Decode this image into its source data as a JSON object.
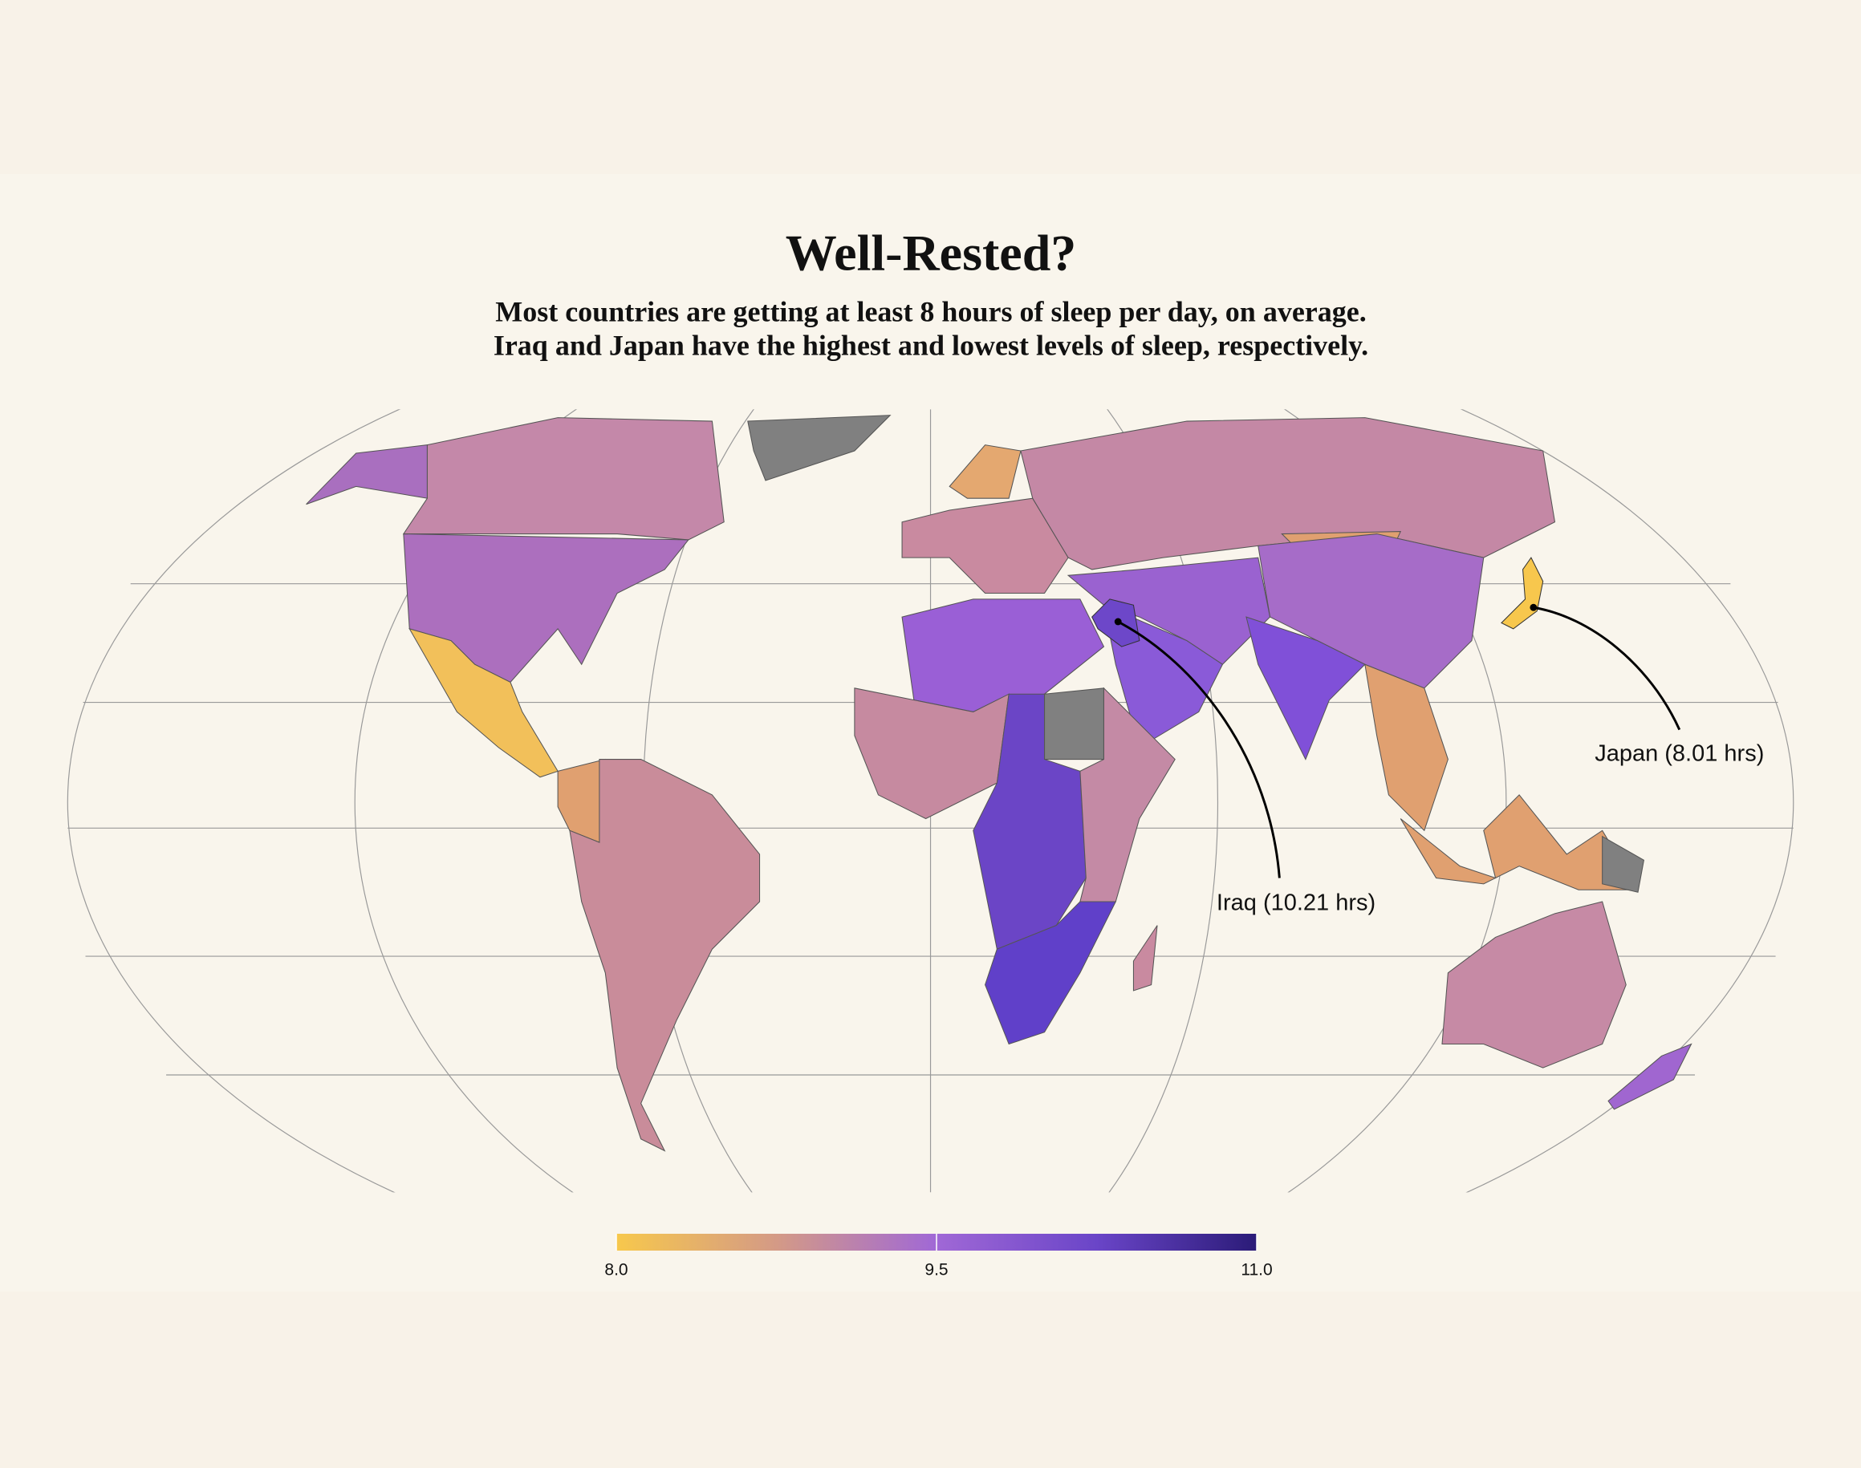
{
  "chart_data": {
    "type": "choropleth",
    "title": "Well-Rested?",
    "subtitle": [
      "Most countries are getting at least 8 hours of sleep per day, on average.",
      "Iraq and Japan have the highest and lowest levels of sleep, respectively."
    ],
    "colorbar": {
      "clim": [
        8,
        11
      ],
      "ticks": [
        {
          "value": 8,
          "label": "8.0"
        },
        {
          "value": 9.5,
          "label": "9.5"
        },
        {
          "value": 11,
          "label": "11.0"
        }
      ],
      "colors": [
        "#f7c84c",
        "#d49a86",
        "#a068d6",
        "#6a45c8",
        "#2b1b78"
      ]
    },
    "annotations": [
      {
        "text": "Japan (8.01 hrs)",
        "value": 8.01
      },
      {
        "text": "Iraq (10.21 hrs)",
        "value": 10.21
      }
    ]
  }
}
